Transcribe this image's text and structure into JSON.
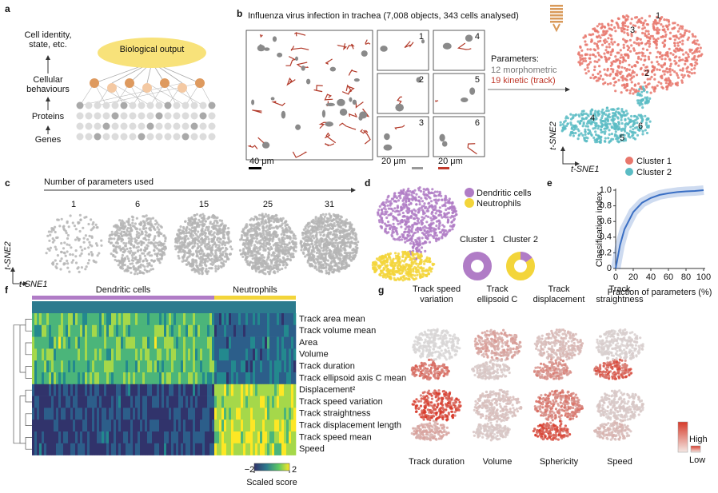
{
  "panels": {
    "a": {
      "label": "a",
      "output": "Biological output",
      "levels": [
        "Cell identity,",
        "state, etc.",
        "Cellular",
        "behaviours",
        "Proteins",
        "Genes"
      ]
    },
    "b": {
      "label": "b",
      "title": "Influenza virus infection in trachea (7,008 objects, 343 cells analysed)",
      "insets": [
        "1",
        "2",
        "3",
        "4",
        "5",
        "6"
      ],
      "scale_bars": [
        "40 μm",
        "20 μm",
        "20 μm"
      ],
      "parameters_title": "Parameters:",
      "parameters": [
        "12 morphometric",
        "19 kinetic (track)"
      ],
      "cluster_points": [
        "1",
        "2",
        "3",
        "4",
        "5",
        "6"
      ],
      "x_axis": "t-SNE1",
      "y_axis": "t-SNE2",
      "legend": [
        {
          "name": "Cluster 1",
          "color": "#e8776c"
        },
        {
          "name": "Cluster 2",
          "color": "#5bbcc4"
        }
      ]
    },
    "c": {
      "label": "c",
      "title": "Number of parameters used",
      "counts": [
        "1",
        "6",
        "15",
        "25",
        "31"
      ],
      "x_axis": "t-SNE1",
      "y_axis": "t-SNE2"
    },
    "d": {
      "label": "d",
      "legend": [
        {
          "name": "Dendritic cells",
          "color": "#b07cc6"
        },
        {
          "name": "Neutrophils",
          "color": "#f3d53a"
        }
      ],
      "donuts": [
        {
          "name": "Cluster 1",
          "values": [
            100,
            0
          ]
        },
        {
          "name": "Cluster 2",
          "values": [
            15,
            85
          ]
        }
      ]
    },
    "e": {
      "label": "e",
      "chart_data": {
        "type": "line",
        "x_label": "Fraction of parameters (%)",
        "y_label": "Classification index",
        "x": [
          0,
          5,
          10,
          20,
          30,
          40,
          50,
          60,
          70,
          80,
          90,
          100
        ],
        "values": [
          0,
          0.3,
          0.5,
          0.72,
          0.84,
          0.9,
          0.94,
          0.96,
          0.975,
          0.985,
          0.99,
          1.0
        ],
        "color": "#3a6fc4",
        "xlim": [
          0,
          100
        ],
        "xticks": [
          0,
          20,
          40,
          60,
          80,
          100
        ],
        "ylim": [
          0,
          1
        ],
        "yticks": [
          0,
          0.2,
          0.4,
          0.6,
          0.8,
          {
            "value": 1,
            "label": "1.0"
          }
        ]
      }
    },
    "f": {
      "label": "f",
      "groups": [
        "Dendritic cells",
        "Neutrophils"
      ],
      "rows": [
        "Track area mean",
        "Track volume mean",
        "Area",
        "Volume",
        "Track duration",
        "Track ellipsoid axis C mean",
        "Displacement²",
        "Track speed variation",
        "Track straightness",
        "Track displacement length",
        "Track speed mean",
        "Speed"
      ],
      "colorbar": {
        "lim": [
          -2,
          2
        ],
        "ticks": [
          {
            "value": -2,
            "label": "−2"
          },
          2
        ],
        "label": "Scaled score"
      }
    },
    "g": {
      "label": "g",
      "top": [
        [
          "Track speed",
          "variation"
        ],
        [
          "Track",
          "ellipsoid C"
        ],
        [
          "Track",
          "displacement"
        ],
        [
          "Track",
          "straightness"
        ]
      ],
      "bottom": [
        "Track duration",
        "Volume",
        "Sphericity",
        "Speed"
      ],
      "legend": [
        "High",
        "Low"
      ]
    }
  }
}
